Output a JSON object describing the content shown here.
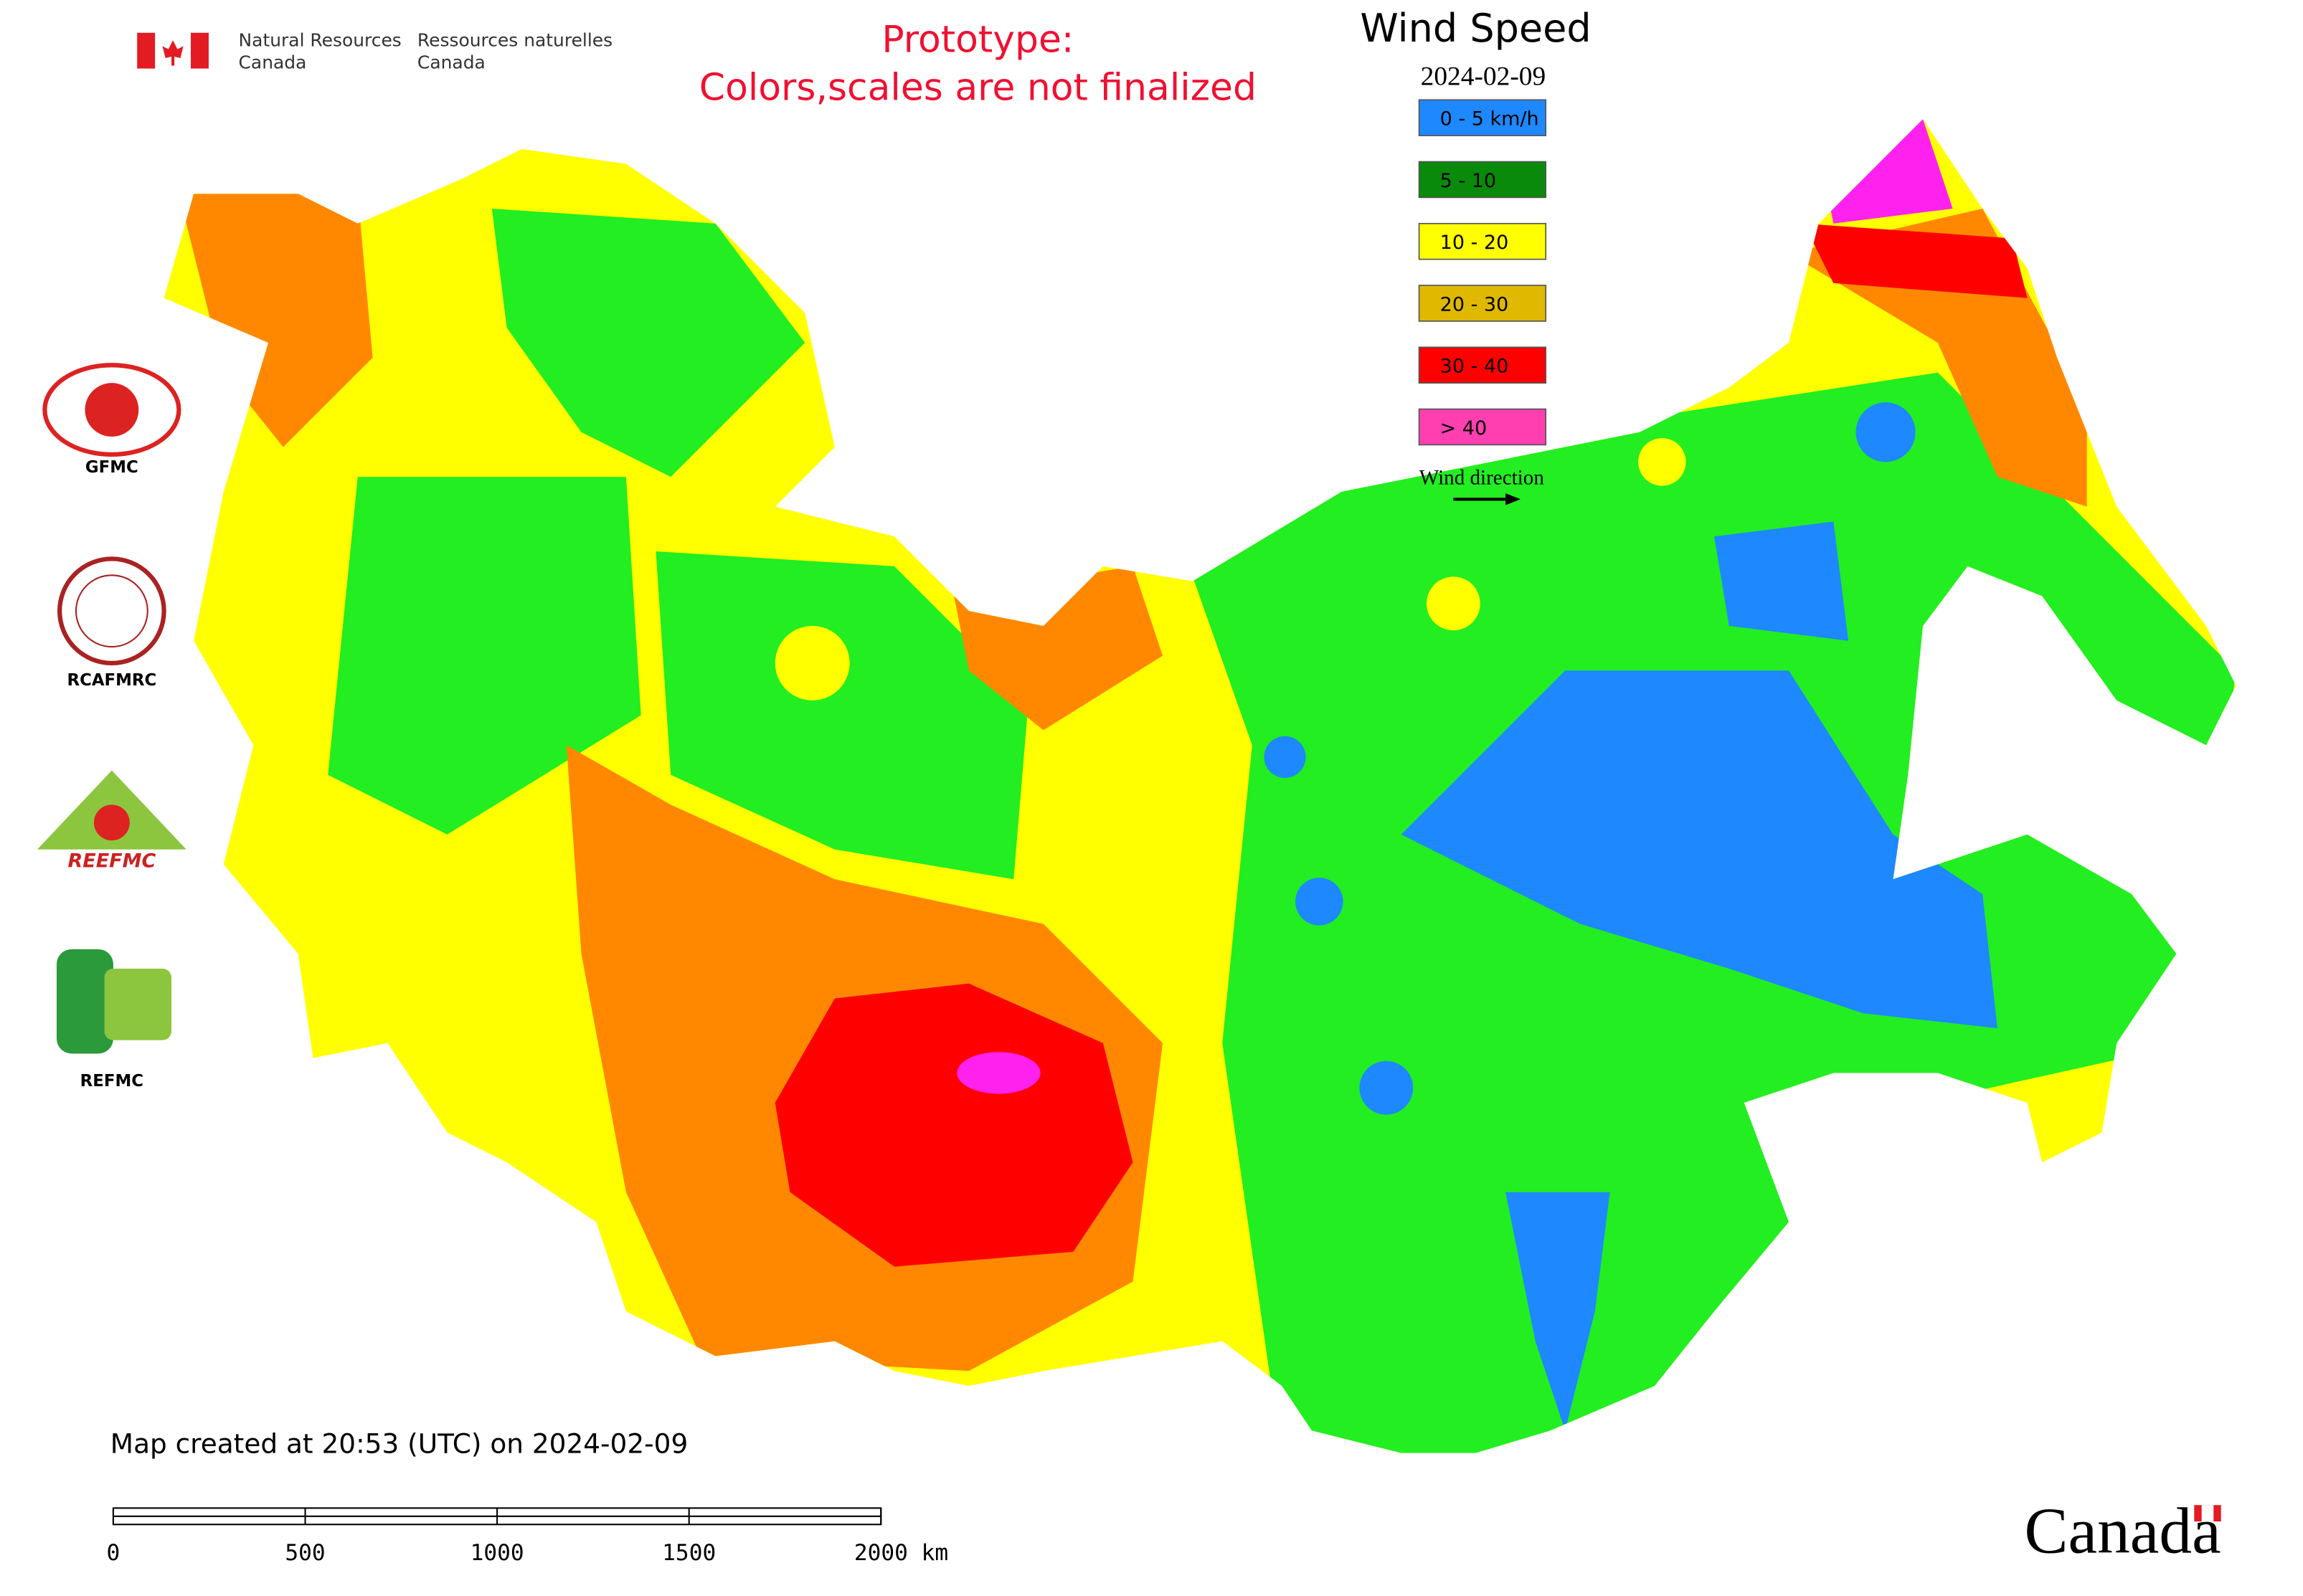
{
  "header": {
    "org_en": [
      "Natural Resources",
      "Canada"
    ],
    "org_fr": [
      "Ressources naturelles",
      "Canada"
    ]
  },
  "prototype_note": [
    "Prototype:",
    "Colors,scales are not finalized"
  ],
  "legend": {
    "title": "Wind Speed",
    "date": "2024-02-09",
    "items": [
      {
        "label": "0 - 5 km/h",
        "color": "#1e88ff"
      },
      {
        "label": "5 - 10",
        "color": "#0a8a0a"
      },
      {
        "label": "10 - 20",
        "color": "#ffff00"
      },
      {
        "label": "20 - 30",
        "color": "#e0b800"
      },
      {
        "label": "30 - 40",
        "color": "#ff0000"
      },
      {
        "label": "> 40",
        "color": "#ff3fb0"
      }
    ],
    "wind_direction": "Wind direction"
  },
  "logos": [
    "GFMC",
    "RCAFMRC",
    "REEFMC",
    "REFMC"
  ],
  "footer": {
    "created": "Map created at 20:53 (UTC) on 2024-02-09",
    "scale": [
      "0",
      "500",
      "1000",
      "1500",
      "2000 km"
    ],
    "wordmark": "Canada"
  }
}
